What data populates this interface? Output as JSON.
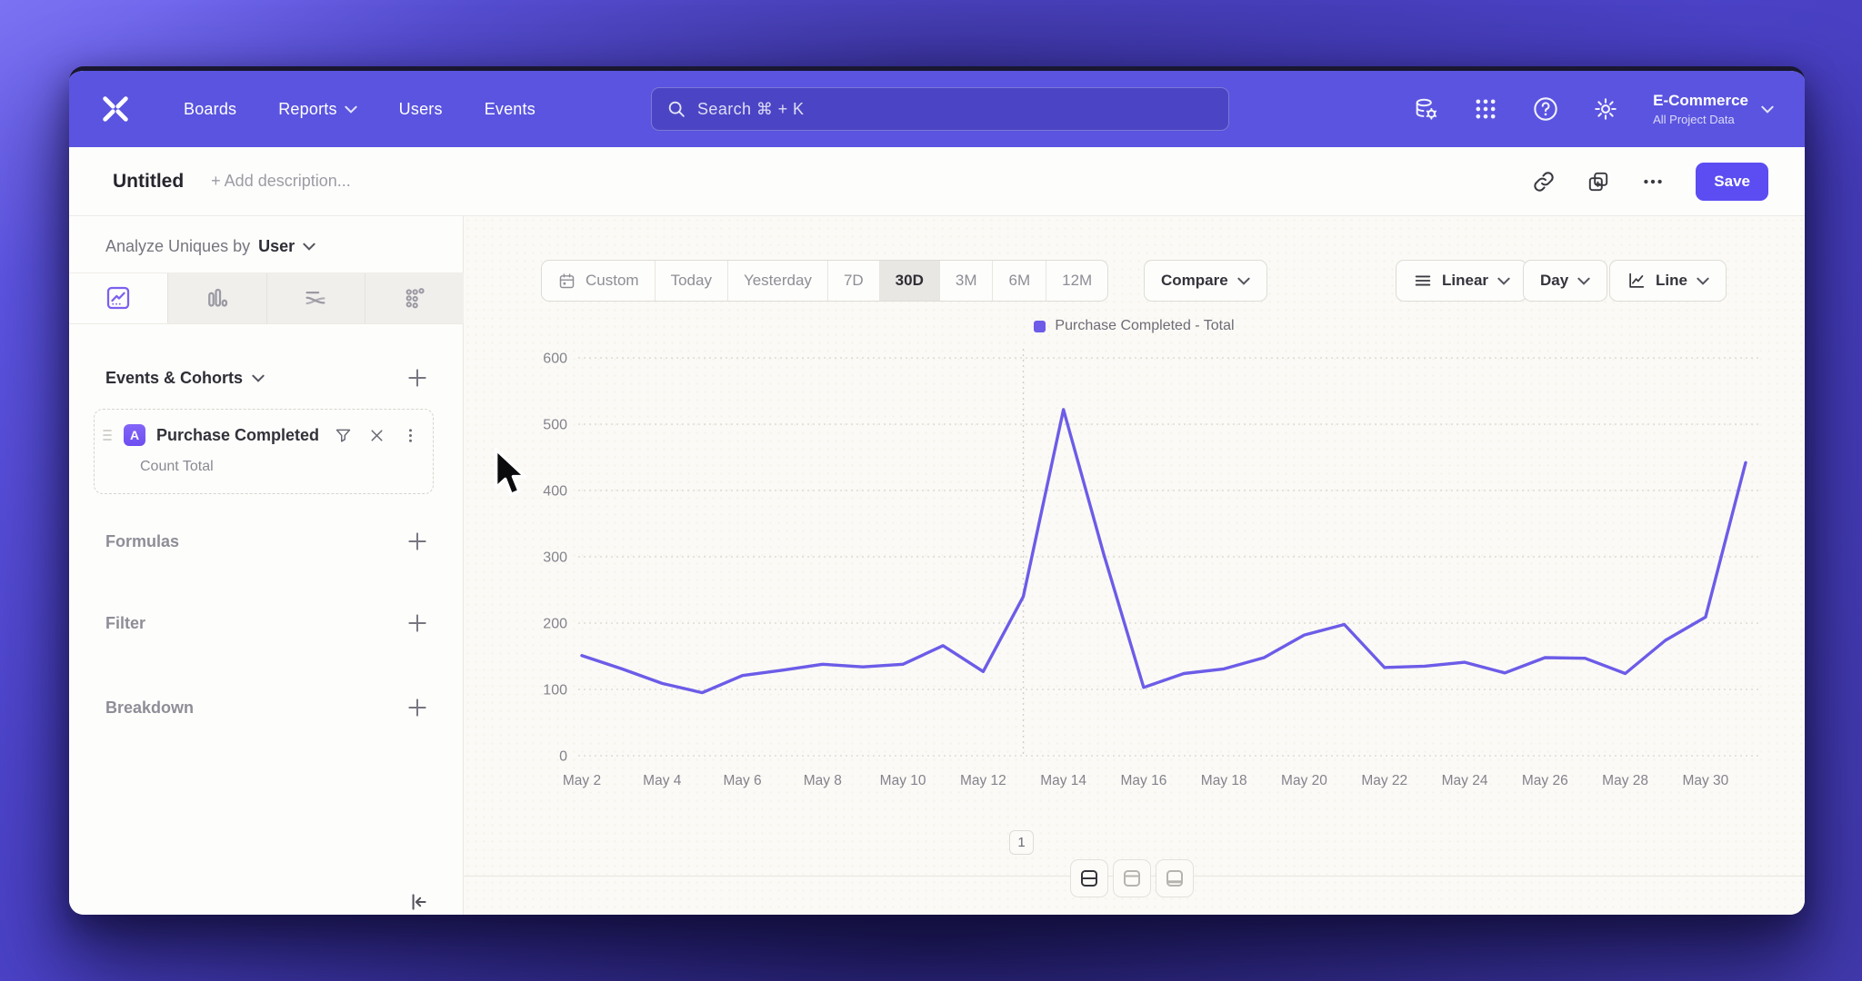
{
  "nav": {
    "items": [
      "Boards",
      "Reports",
      "Users",
      "Events"
    ],
    "search_placeholder": "Search  ⌘ + K",
    "project_name": "E-Commerce",
    "project_subtitle": "All Project Data"
  },
  "header": {
    "title": "Untitled",
    "description_placeholder": "+ Add description...",
    "save_label": "Save"
  },
  "sidebar": {
    "analyze_label": "Analyze Uniques by",
    "analyze_value": "User",
    "events_section_label": "Events & Cohorts",
    "event": {
      "badge": "A",
      "title": "Purchase Completed",
      "metric": "Count Total"
    },
    "formulas_label": "Formulas",
    "filter_label": "Filter",
    "breakdown_label": "Breakdown"
  },
  "toolbar": {
    "ranges": [
      "Custom",
      "Today",
      "Yesterday",
      "7D",
      "30D",
      "3M",
      "6M",
      "12M"
    ],
    "selected_range": "30D",
    "compare_label": "Compare",
    "scale_label": "Linear",
    "interval_label": "Day",
    "chart_type_label": "Line"
  },
  "footer": {
    "page": "1"
  },
  "colors": {
    "nav_purple": "#5a54e0",
    "accent": "#5b4df2",
    "line": "#6c5ce8",
    "grid": "#d8d5cf",
    "axis_text": "#84828c"
  },
  "chart_data": {
    "type": "line",
    "title": "",
    "xlabel": "",
    "ylabel": "",
    "ylim": [
      0,
      600
    ],
    "yticks": [
      0,
      100,
      200,
      300,
      400,
      500,
      600
    ],
    "grid": "horizontal-dotted",
    "legend_position": "top-center",
    "annotation_line_at": "May 13",
    "categories": [
      "May 2",
      "May 3",
      "May 4",
      "May 5",
      "May 6",
      "May 7",
      "May 8",
      "May 9",
      "May 10",
      "May 11",
      "May 12",
      "May 13",
      "May 14",
      "May 15",
      "May 16",
      "May 17",
      "May 18",
      "May 19",
      "May 20",
      "May 21",
      "May 22",
      "May 23",
      "May 24",
      "May 25",
      "May 26",
      "May 27",
      "May 28",
      "May 29",
      "May 30",
      "May 31"
    ],
    "x_tick_labels": [
      "May 2",
      "May 4",
      "May 6",
      "May 8",
      "May 10",
      "May 12",
      "May 14",
      "May 16",
      "May 18",
      "May 20",
      "May 22",
      "May 24",
      "May 26",
      "May 28",
      "May 30"
    ],
    "series": [
      {
        "name": "Purchase Completed - Total",
        "color": "#6c5ce8",
        "values": [
          151,
          131,
          109,
          95,
          121,
          129,
          138,
          134,
          138,
          166,
          127,
          240,
          522,
          305,
          103,
          124,
          131,
          148,
          182,
          198,
          133,
          135,
          141,
          125,
          148,
          147,
          124,
          174,
          209,
          442
        ]
      }
    ]
  }
}
